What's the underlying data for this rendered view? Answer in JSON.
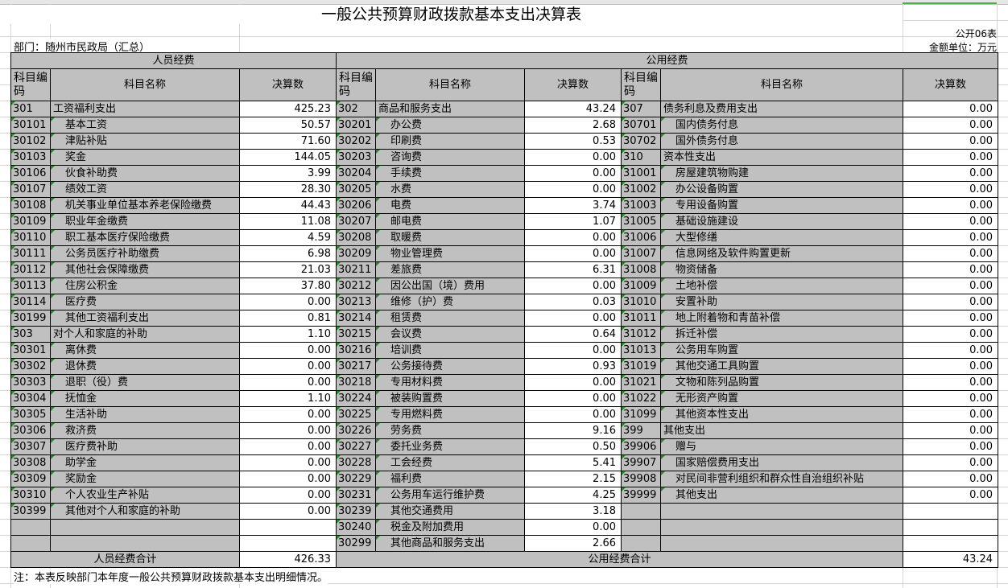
{
  "title": "一般公共预算财政拨款基本支出决算表",
  "form_no": "公开06表",
  "department": "部门：随州市民政局（汇总）",
  "unit": "金额单位：万元",
  "headers": {
    "personnel": "人员经费",
    "public": "公用经费",
    "code": "科目编码",
    "name": "科目名称",
    "amount": "决算数"
  },
  "personnel": [
    [
      "301",
      "工资福利支出",
      "425.23",
      0
    ],
    [
      "30101",
      "基本工资",
      "50.57",
      1
    ],
    [
      "30102",
      "津贴补贴",
      "71.60",
      1
    ],
    [
      "30103",
      "奖金",
      "144.05",
      1
    ],
    [
      "30106",
      "伙食补助费",
      "3.99",
      1
    ],
    [
      "30107",
      "绩效工资",
      "28.30",
      1
    ],
    [
      "30108",
      "机关事业单位基本养老保险缴费",
      "44.43",
      1
    ],
    [
      "30109",
      "职业年金缴费",
      "11.08",
      1
    ],
    [
      "30110",
      "职工基本医疗保险缴费",
      "4.59",
      1
    ],
    [
      "30111",
      "公务员医疗补助缴费",
      "6.98",
      1
    ],
    [
      "30112",
      "其他社会保障缴费",
      "21.03",
      1
    ],
    [
      "30113",
      "住房公积金",
      "37.80",
      1
    ],
    [
      "30114",
      "医疗费",
      "0.00",
      1
    ],
    [
      "30199",
      "其他工资福利支出",
      "0.81",
      1
    ],
    [
      "303",
      "对个人和家庭的补助",
      "1.10",
      0
    ],
    [
      "30301",
      "离休费",
      "0.00",
      1
    ],
    [
      "30302",
      "退休费",
      "0.00",
      1
    ],
    [
      "30303",
      "退职（役）费",
      "0.00",
      1
    ],
    [
      "30304",
      "抚恤金",
      "1.10",
      1
    ],
    [
      "30305",
      "生活补助",
      "0.00",
      1
    ],
    [
      "30306",
      "救济费",
      "0.00",
      1
    ],
    [
      "30307",
      "医疗费补助",
      "0.00",
      1
    ],
    [
      "30308",
      "助学金",
      "0.00",
      1
    ],
    [
      "30309",
      "奖励金",
      "0.00",
      1
    ],
    [
      "30310",
      "个人农业生产补贴",
      "0.00",
      1
    ],
    [
      "30399",
      "其他对个人和家庭的补助",
      "0.00",
      1
    ]
  ],
  "public_a": [
    [
      "302",
      "商品和服务支出",
      "43.24",
      0
    ],
    [
      "30201",
      "办公费",
      "2.68",
      1
    ],
    [
      "30202",
      "印刷费",
      "0.53",
      1
    ],
    [
      "30203",
      "咨询费",
      "0.00",
      1
    ],
    [
      "30204",
      "手续费",
      "0.00",
      1
    ],
    [
      "30205",
      "水费",
      "0.00",
      1
    ],
    [
      "30206",
      "电费",
      "3.74",
      1
    ],
    [
      "30207",
      "邮电费",
      "1.07",
      1
    ],
    [
      "30208",
      "取暖费",
      "0.00",
      1
    ],
    [
      "30209",
      "物业管理费",
      "0.00",
      1
    ],
    [
      "30211",
      "差旅费",
      "6.31",
      1
    ],
    [
      "30212",
      "因公出国（境）费用",
      "0.00",
      1
    ],
    [
      "30213",
      "维修（护）费",
      "0.03",
      1
    ],
    [
      "30214",
      "租赁费",
      "0.00",
      1
    ],
    [
      "30215",
      "会议费",
      "0.64",
      1
    ],
    [
      "30216",
      "培训费",
      "0.00",
      1
    ],
    [
      "30217",
      "公务接待费",
      "0.93",
      1
    ],
    [
      "30218",
      "专用材料费",
      "0.00",
      1
    ],
    [
      "30224",
      "被装购置费",
      "0.00",
      1
    ],
    [
      "30225",
      "专用燃料费",
      "0.00",
      1
    ],
    [
      "30226",
      "劳务费",
      "9.16",
      1
    ],
    [
      "30227",
      "委托业务费",
      "0.50",
      1
    ],
    [
      "30228",
      "工会经费",
      "5.41",
      1
    ],
    [
      "30229",
      "福利费",
      "2.15",
      1
    ],
    [
      "30231",
      "公务用车运行维护费",
      "4.25",
      1
    ],
    [
      "30239",
      "其他交通费用",
      "3.18",
      1
    ],
    [
      "30240",
      "税金及附加费用",
      "0.00",
      1
    ],
    [
      "30299",
      "其他商品和服务支出",
      "2.66",
      1
    ]
  ],
  "public_b": [
    [
      "307",
      "债务利息及费用支出",
      "0.00",
      0
    ],
    [
      "30701",
      "国内债务付息",
      "0.00",
      1
    ],
    [
      "30702",
      "国外债务付息",
      "0.00",
      1
    ],
    [
      "310",
      "资本性支出",
      "0.00",
      0
    ],
    [
      "31001",
      "房屋建筑物购建",
      "0.00",
      1
    ],
    [
      "31002",
      "办公设备购置",
      "0.00",
      1
    ],
    [
      "31003",
      "专用设备购置",
      "0.00",
      1
    ],
    [
      "31005",
      "基础设施建设",
      "0.00",
      1
    ],
    [
      "31006",
      "大型修缮",
      "0.00",
      1
    ],
    [
      "31007",
      "信息网络及软件购置更新",
      "0.00",
      1
    ],
    [
      "31008",
      "物资储备",
      "0.00",
      1
    ],
    [
      "31009",
      "土地补偿",
      "0.00",
      1
    ],
    [
      "31010",
      "安置补助",
      "0.00",
      1
    ],
    [
      "31011",
      "地上附着物和青苗补偿",
      "0.00",
      1
    ],
    [
      "31012",
      "拆迁补偿",
      "0.00",
      1
    ],
    [
      "31013",
      "公务用车购置",
      "0.00",
      1
    ],
    [
      "31019",
      "其他交通工具购置",
      "0.00",
      1
    ],
    [
      "31021",
      "文物和陈列品购置",
      "0.00",
      1
    ],
    [
      "31022",
      "无形资产购置",
      "0.00",
      1
    ],
    [
      "31099",
      "其他资本性支出",
      "0.00",
      1
    ],
    [
      "399",
      "其他支出",
      "0.00",
      0
    ],
    [
      "39906",
      "赠与",
      "0.00",
      1
    ],
    [
      "39907",
      "国家赔偿费用支出",
      "0.00",
      1
    ],
    [
      "39908",
      "对民间非营利组织和群众性自治组织补贴",
      "0.00",
      1
    ],
    [
      "39999",
      "其他支出",
      "0.00",
      1
    ]
  ],
  "totals": {
    "personnel_label": "人员经费合计",
    "personnel_value": "426.33",
    "public_label": "公用经费合计",
    "public_value": "43.24"
  },
  "note": "注：本表反映部门本年度一般公共预算财政拨款基本支出明细情况。",
  "colors": {
    "header_fill": "#c0c0c0",
    "marker": "#1e8c1e"
  }
}
